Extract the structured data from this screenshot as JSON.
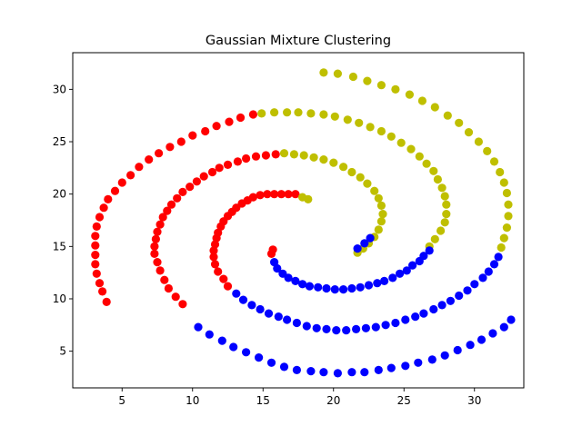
{
  "chart_data": {
    "type": "scatter",
    "title": "Gaussian Mixture Clustering",
    "xlabel": "",
    "ylabel": "",
    "xlim": [
      1.5,
      33.5
    ],
    "ylim": [
      1.5,
      33.5
    ],
    "x_ticks": [
      5,
      10,
      15,
      20,
      25,
      30
    ],
    "y_ticks": [
      5,
      10,
      15,
      20,
      25,
      30
    ],
    "grid": false,
    "clusters": [
      {
        "color": "#ff0000",
        "points": [
          [
            3.9,
            9.7
          ],
          [
            3.6,
            10.7
          ],
          [
            3.4,
            11.5
          ],
          [
            3.2,
            12.4
          ],
          [
            3.1,
            13.3
          ],
          [
            3.1,
            14.2
          ],
          [
            3.1,
            15.1
          ],
          [
            3.1,
            16.0
          ],
          [
            3.2,
            16.9
          ],
          [
            3.4,
            17.8
          ],
          [
            3.7,
            18.7
          ],
          [
            4.0,
            19.5
          ],
          [
            4.5,
            20.3
          ],
          [
            5.0,
            21.1
          ],
          [
            5.6,
            21.8
          ],
          [
            6.2,
            22.6
          ],
          [
            6.9,
            23.3
          ],
          [
            7.6,
            23.9
          ],
          [
            8.4,
            24.5
          ],
          [
            9.2,
            25.0
          ],
          [
            10.0,
            25.6
          ],
          [
            10.9,
            26.0
          ],
          [
            11.7,
            26.5
          ],
          [
            12.6,
            26.9
          ],
          [
            13.4,
            27.3
          ],
          [
            14.3,
            27.6
          ],
          [
            7.3,
            14.3
          ],
          [
            7.3,
            15.0
          ],
          [
            7.4,
            15.7
          ],
          [
            7.5,
            16.4
          ],
          [
            7.7,
            17.1
          ],
          [
            7.9,
            17.8
          ],
          [
            8.2,
            18.4
          ],
          [
            8.5,
            19.0
          ],
          [
            8.9,
            19.6
          ],
          [
            9.3,
            20.2
          ],
          [
            9.8,
            20.7
          ],
          [
            10.3,
            21.2
          ],
          [
            10.8,
            21.7
          ],
          [
            11.4,
            22.1
          ],
          [
            11.9,
            22.5
          ],
          [
            12.5,
            22.8
          ],
          [
            13.2,
            23.1
          ],
          [
            13.8,
            23.4
          ],
          [
            14.5,
            23.6
          ],
          [
            15.2,
            23.7
          ],
          [
            15.9,
            23.8
          ],
          [
            7.5,
            13.5
          ],
          [
            7.7,
            12.7
          ],
          [
            8.0,
            11.8
          ],
          [
            8.3,
            11.0
          ],
          [
            8.8,
            10.2
          ],
          [
            9.3,
            9.5
          ],
          [
            11.5,
            14.0
          ],
          [
            11.5,
            14.6
          ],
          [
            11.6,
            15.2
          ],
          [
            11.7,
            15.8
          ],
          [
            11.8,
            16.3
          ],
          [
            12.0,
            16.9
          ],
          [
            12.2,
            17.4
          ],
          [
            12.5,
            17.9
          ],
          [
            12.8,
            18.3
          ],
          [
            13.1,
            18.7
          ],
          [
            13.5,
            19.1
          ],
          [
            13.9,
            19.4
          ],
          [
            14.3,
            19.7
          ],
          [
            14.8,
            19.9
          ],
          [
            15.3,
            20.0
          ],
          [
            15.8,
            20.0
          ],
          [
            16.3,
            20.0
          ],
          [
            16.8,
            20.0
          ],
          [
            17.3,
            20.0
          ],
          [
            11.6,
            13.3
          ],
          [
            11.8,
            12.6
          ],
          [
            12.2,
            11.9
          ],
          [
            12.5,
            11.2
          ],
          [
            15.6,
            14.3
          ],
          [
            15.7,
            14.7
          ]
        ]
      },
      {
        "color": "#bfbf00",
        "points": [
          [
            14.9,
            27.7
          ],
          [
            15.8,
            27.8
          ],
          [
            16.7,
            27.8
          ],
          [
            17.5,
            27.8
          ],
          [
            18.4,
            27.7
          ],
          [
            19.3,
            27.6
          ],
          [
            20.1,
            27.4
          ],
          [
            21.0,
            27.1
          ],
          [
            21.8,
            26.8
          ],
          [
            22.6,
            26.4
          ],
          [
            23.4,
            26.0
          ],
          [
            24.1,
            25.5
          ],
          [
            24.8,
            24.9
          ],
          [
            25.5,
            24.3
          ],
          [
            26.1,
            23.6
          ],
          [
            26.6,
            22.9
          ],
          [
            27.1,
            22.2
          ],
          [
            27.4,
            21.4
          ],
          [
            27.7,
            20.6
          ],
          [
            27.9,
            19.8
          ],
          [
            28.0,
            19.0
          ],
          [
            28.0,
            18.1
          ],
          [
            27.9,
            17.3
          ],
          [
            27.6,
            16.5
          ],
          [
            27.2,
            15.7
          ],
          [
            26.8,
            15.0
          ],
          [
            16.5,
            23.9
          ],
          [
            17.2,
            23.8
          ],
          [
            17.9,
            23.7
          ],
          [
            18.6,
            23.5
          ],
          [
            19.3,
            23.3
          ],
          [
            20.0,
            23.0
          ],
          [
            20.7,
            22.6
          ],
          [
            21.3,
            22.1
          ],
          [
            21.9,
            21.6
          ],
          [
            22.4,
            21.0
          ],
          [
            22.9,
            20.3
          ],
          [
            23.2,
            19.6
          ],
          [
            23.4,
            18.9
          ],
          [
            23.5,
            18.1
          ],
          [
            23.4,
            17.4
          ],
          [
            23.2,
            16.6
          ],
          [
            22.9,
            15.9
          ],
          [
            22.5,
            15.3
          ],
          [
            22.1,
            14.8
          ],
          [
            21.7,
            14.4
          ],
          [
            19.3,
            31.6
          ],
          [
            20.3,
            31.5
          ],
          [
            21.4,
            31.2
          ],
          [
            22.4,
            30.8
          ],
          [
            23.4,
            30.4
          ],
          [
            24.4,
            30.0
          ],
          [
            25.4,
            29.5
          ],
          [
            26.3,
            28.9
          ],
          [
            27.2,
            28.3
          ],
          [
            28.1,
            27.5
          ],
          [
            28.9,
            26.8
          ],
          [
            29.6,
            25.9
          ],
          [
            30.3,
            25.0
          ],
          [
            30.9,
            24.1
          ],
          [
            31.4,
            23.1
          ],
          [
            31.8,
            22.1
          ],
          [
            32.1,
            21.1
          ],
          [
            32.3,
            20.1
          ],
          [
            32.4,
            19.0
          ],
          [
            32.4,
            17.9
          ],
          [
            32.3,
            16.8
          ],
          [
            32.1,
            15.8
          ],
          [
            31.9,
            14.9
          ],
          [
            17.8,
            19.7
          ],
          [
            18.2,
            19.5
          ]
        ]
      },
      {
        "color": "#0000ff",
        "points": [
          [
            15.8,
            13.5
          ],
          [
            16.0,
            12.9
          ],
          [
            16.4,
            12.4
          ],
          [
            16.8,
            12.0
          ],
          [
            17.3,
            11.7
          ],
          [
            17.8,
            11.4
          ],
          [
            18.3,
            11.2
          ],
          [
            18.9,
            11.1
          ],
          [
            19.5,
            11.0
          ],
          [
            20.1,
            10.9
          ],
          [
            20.7,
            10.9
          ],
          [
            21.3,
            11.0
          ],
          [
            21.9,
            11.1
          ],
          [
            22.5,
            11.3
          ],
          [
            23.1,
            11.5
          ],
          [
            23.6,
            11.7
          ],
          [
            24.2,
            12.0
          ],
          [
            24.7,
            12.4
          ],
          [
            25.2,
            12.7
          ],
          [
            25.6,
            13.2
          ],
          [
            26.1,
            13.6
          ],
          [
            26.4,
            14.1
          ],
          [
            26.8,
            14.6
          ],
          [
            10.4,
            7.3
          ],
          [
            11.2,
            6.6
          ],
          [
            12.1,
            6.0
          ],
          [
            12.9,
            5.4
          ],
          [
            13.8,
            4.9
          ],
          [
            14.7,
            4.4
          ],
          [
            15.6,
            3.9
          ],
          [
            16.5,
            3.5
          ],
          [
            17.4,
            3.2
          ],
          [
            18.4,
            3.1
          ],
          [
            19.3,
            3.0
          ],
          [
            20.3,
            2.9
          ],
          [
            21.3,
            3.0
          ],
          [
            22.2,
            3.0
          ],
          [
            23.2,
            3.2
          ],
          [
            24.1,
            3.4
          ],
          [
            25.1,
            3.6
          ],
          [
            26.0,
            3.9
          ],
          [
            27.0,
            4.2
          ],
          [
            27.9,
            4.6
          ],
          [
            28.8,
            5.1
          ],
          [
            29.7,
            5.6
          ],
          [
            30.5,
            6.1
          ],
          [
            31.3,
            6.7
          ],
          [
            32.1,
            7.3
          ],
          [
            32.6,
            8.0
          ],
          [
            13.1,
            10.5
          ],
          [
            13.6,
            9.9
          ],
          [
            14.2,
            9.4
          ],
          [
            14.8,
            9.0
          ],
          [
            15.4,
            8.6
          ],
          [
            16.1,
            8.3
          ],
          [
            16.7,
            8.0
          ],
          [
            17.4,
            7.7
          ],
          [
            18.1,
            7.4
          ],
          [
            18.8,
            7.2
          ],
          [
            19.5,
            7.1
          ],
          [
            20.2,
            7.0
          ],
          [
            20.9,
            7.0
          ],
          [
            21.6,
            7.1
          ],
          [
            22.3,
            7.2
          ],
          [
            23.0,
            7.3
          ],
          [
            23.7,
            7.5
          ],
          [
            24.4,
            7.7
          ],
          [
            25.1,
            8.0
          ],
          [
            25.8,
            8.3
          ],
          [
            26.4,
            8.6
          ],
          [
            27.1,
            9.0
          ],
          [
            27.7,
            9.4
          ],
          [
            28.3,
            9.8
          ],
          [
            28.9,
            10.3
          ],
          [
            29.5,
            10.8
          ],
          [
            30.0,
            11.4
          ],
          [
            30.6,
            12.0
          ],
          [
            31.0,
            12.6
          ],
          [
            31.4,
            13.3
          ],
          [
            31.7,
            14.0
          ],
          [
            21.7,
            14.8
          ],
          [
            22.2,
            15.3
          ],
          [
            22.6,
            15.8
          ]
        ]
      }
    ]
  }
}
